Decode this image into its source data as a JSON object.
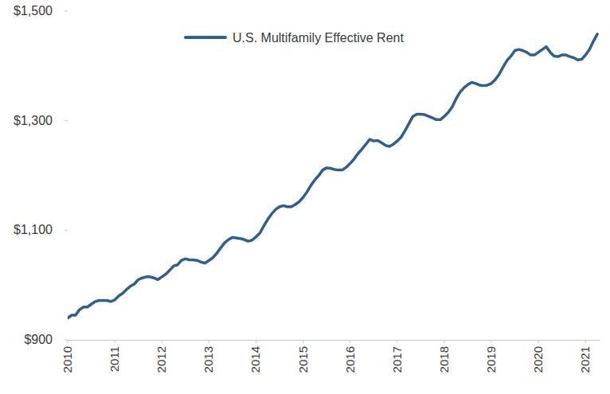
{
  "chart_data": {
    "type": "line",
    "x": [
      2010,
      2010.0833,
      2010.1667,
      2010.25,
      2010.3333,
      2010.4167,
      2010.5,
      2010.5833,
      2010.6667,
      2010.75,
      2010.8333,
      2010.9167,
      2011,
      2011.0833,
      2011.1667,
      2011.25,
      2011.3333,
      2011.4167,
      2011.5,
      2011.5833,
      2011.6667,
      2011.75,
      2011.8333,
      2011.9167,
      2012,
      2012.0833,
      2012.1667,
      2012.25,
      2012.3333,
      2012.4167,
      2012.5,
      2012.5833,
      2012.6667,
      2012.75,
      2012.8333,
      2012.9167,
      2013,
      2013.0833,
      2013.1667,
      2013.25,
      2013.3333,
      2013.4167,
      2013.5,
      2013.5833,
      2013.6667,
      2013.75,
      2013.8333,
      2013.9167,
      2014,
      2014.0833,
      2014.1667,
      2014.25,
      2014.3333,
      2014.4167,
      2014.5,
      2014.5833,
      2014.6667,
      2014.75,
      2014.8333,
      2014.9167,
      2015,
      2015.0833,
      2015.1667,
      2015.25,
      2015.3333,
      2015.4167,
      2015.5,
      2015.5833,
      2015.6667,
      2015.75,
      2015.8333,
      2015.9167,
      2016,
      2016.0833,
      2016.1667,
      2016.25,
      2016.3333,
      2016.4167,
      2016.5,
      2016.5833,
      2016.6667,
      2016.75,
      2016.8333,
      2016.9167,
      2017,
      2017.0833,
      2017.1667,
      2017.25,
      2017.3333,
      2017.4167,
      2017.5,
      2017.5833,
      2017.6667,
      2017.75,
      2017.8333,
      2017.9167,
      2018,
      2018.0833,
      2018.1667,
      2018.25,
      2018.3333,
      2018.4167,
      2018.5,
      2018.5833,
      2018.6667,
      2018.75,
      2018.8333,
      2018.9167,
      2019,
      2019.0833,
      2019.1667,
      2019.25,
      2019.3333,
      2019.4167,
      2019.5,
      2019.5833,
      2019.6667,
      2019.75,
      2019.8333,
      2019.9167,
      2020,
      2020.0833,
      2020.1667,
      2020.25,
      2020.3333,
      2020.4167,
      2020.5,
      2020.5833,
      2020.6667,
      2020.75,
      2020.8333,
      2020.9167,
      2021,
      2021.0833,
      2021.1667,
      2021.25
    ],
    "series": [
      {
        "name": "U.S. Multifamily Effective Rent",
        "color": "#2e5f8f",
        "values": [
          940,
          945,
          945,
          955,
          960,
          960,
          965,
          970,
          972,
          972,
          972,
          970,
          973,
          980,
          985,
          992,
          998,
          1002,
          1010,
          1013,
          1015,
          1015,
          1013,
          1010,
          1015,
          1020,
          1027,
          1035,
          1037,
          1045,
          1048,
          1046,
          1046,
          1045,
          1042,
          1040,
          1045,
          1050,
          1058,
          1068,
          1077,
          1083,
          1087,
          1086,
          1085,
          1083,
          1080,
          1082,
          1088,
          1095,
          1108,
          1120,
          1130,
          1138,
          1143,
          1145,
          1143,
          1143,
          1147,
          1152,
          1160,
          1170,
          1182,
          1192,
          1200,
          1210,
          1214,
          1213,
          1211,
          1210,
          1210,
          1215,
          1222,
          1230,
          1240,
          1248,
          1257,
          1266,
          1263,
          1264,
          1260,
          1255,
          1253,
          1257,
          1263,
          1270,
          1282,
          1295,
          1308,
          1312,
          1312,
          1311,
          1308,
          1305,
          1302,
          1302,
          1308,
          1315,
          1325,
          1340,
          1352,
          1360,
          1366,
          1370,
          1368,
          1365,
          1364,
          1365,
          1368,
          1375,
          1385,
          1398,
          1410,
          1418,
          1428,
          1430,
          1428,
          1425,
          1420,
          1420,
          1425,
          1430,
          1435,
          1425,
          1418,
          1417,
          1420,
          1420,
          1417,
          1415,
          1411,
          1412,
          1420,
          1430,
          1445,
          1458
        ]
      }
    ],
    "xlim": [
      2010,
      2021.3
    ],
    "xticks": [
      2010,
      2011,
      2012,
      2013,
      2014,
      2015,
      2016,
      2017,
      2018,
      2019,
      2020,
      2021
    ],
    "ylim": [
      900,
      1500
    ],
    "yticks": [
      {
        "value": 900,
        "label": "$900"
      },
      {
        "value": 1100,
        "label": "$1,100"
      },
      {
        "value": 1300,
        "label": "$1,300"
      },
      {
        "value": 1500,
        "label": "$1,500"
      }
    ],
    "grid": false,
    "legend": "top"
  }
}
